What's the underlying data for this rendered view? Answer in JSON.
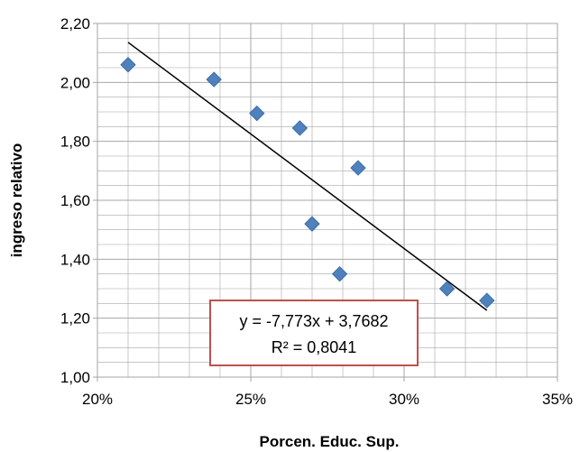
{
  "chart_data": {
    "type": "scatter",
    "xlabel": "Porcen. Educ. Sup.",
    "ylabel": "ingreso relativo",
    "xlim": [
      0.2,
      0.35
    ],
    "ylim": [
      1.0,
      2.2
    ],
    "x_ticks": [
      {
        "value": 0.2,
        "label": "20%"
      },
      {
        "value": 0.25,
        "label": "25%"
      },
      {
        "value": 0.3,
        "label": "30%"
      },
      {
        "value": 0.35,
        "label": "35%"
      }
    ],
    "y_ticks": [
      {
        "value": 1.0,
        "label": "1,00"
      },
      {
        "value": 1.2,
        "label": "1,20"
      },
      {
        "value": 1.4,
        "label": "1,40"
      },
      {
        "value": 1.6,
        "label": "1,60"
      },
      {
        "value": 1.8,
        "label": "1,80"
      },
      {
        "value": 2.0,
        "label": "2,00"
      },
      {
        "value": 2.2,
        "label": "2,20"
      }
    ],
    "grid": true,
    "points": [
      {
        "x": 0.21,
        "y": 2.06
      },
      {
        "x": 0.238,
        "y": 2.01
      },
      {
        "x": 0.252,
        "y": 1.895
      },
      {
        "x": 0.266,
        "y": 1.845
      },
      {
        "x": 0.27,
        "y": 1.52
      },
      {
        "x": 0.279,
        "y": 1.35
      },
      {
        "x": 0.285,
        "y": 1.71
      },
      {
        "x": 0.314,
        "y": 1.3
      },
      {
        "x": 0.327,
        "y": 1.26
      }
    ],
    "trendline": {
      "slope": -7.773,
      "intercept": 3.7682,
      "x_range": [
        0.21,
        0.327
      ],
      "equation": "y = -7,773x + 3,7682",
      "r2": "R² = 0,8041"
    },
    "colors": {
      "marker": "#4f81bd",
      "marker_stroke": "#3a6ea5",
      "trendline": "#000000",
      "grid": "#a6a6a6",
      "equation_border": "#c0504d"
    }
  }
}
